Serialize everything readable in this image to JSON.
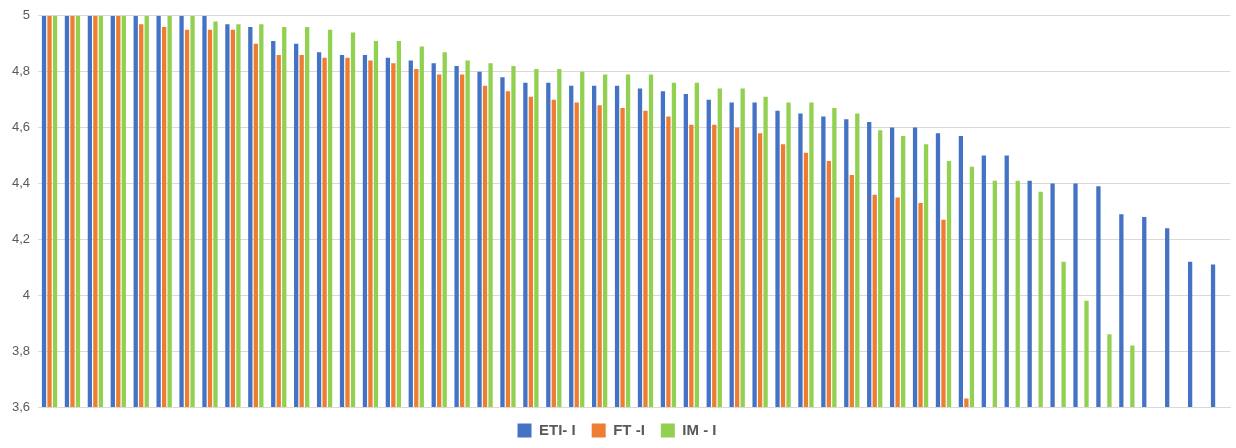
{
  "chart_data": {
    "type": "bar",
    "categories": [
      null,
      null,
      null,
      null,
      null,
      null,
      null,
      null,
      null,
      null,
      null,
      null,
      null,
      null,
      null,
      null,
      null,
      null,
      null,
      null,
      null,
      null,
      null,
      null,
      null,
      null,
      null,
      null,
      null,
      null,
      null,
      null,
      null,
      null,
      null,
      null,
      null,
      null,
      null,
      null,
      null,
      null,
      null,
      null,
      null,
      null,
      null,
      null,
      null,
      null,
      null,
      null
    ],
    "series": [
      {
        "name": "ETI- I",
        "color": "#4472c4",
        "values": [
          5,
          5,
          5,
          5,
          5,
          5,
          5,
          5,
          4.97,
          4.96,
          4.91,
          4.9,
          4.87,
          4.86,
          4.86,
          4.85,
          4.84,
          4.83,
          4.82,
          4.8,
          4.78,
          4.76,
          4.76,
          4.75,
          4.75,
          4.75,
          4.74,
          4.73,
          4.72,
          4.7,
          4.69,
          4.69,
          4.66,
          4.65,
          4.64,
          4.63,
          4.62,
          4.6,
          4.6,
          4.58,
          4.57,
          4.5,
          4.5,
          4.41,
          4.4,
          4.4,
          4.39,
          4.29,
          4.28,
          4.24,
          4.12,
          4.11
        ]
      },
      {
        "name": "FT -I",
        "color": "#ed7d31",
        "values": [
          5,
          5,
          5,
          5,
          4.97,
          4.96,
          4.95,
          4.95,
          4.95,
          4.9,
          4.86,
          4.86,
          4.85,
          4.85,
          4.84,
          4.83,
          4.81,
          4.79,
          4.79,
          4.75,
          4.73,
          4.71,
          4.7,
          4.69,
          4.68,
          4.67,
          4.66,
          4.64,
          4.61,
          4.61,
          4.6,
          4.58,
          4.54,
          4.51,
          4.48,
          4.43,
          4.36,
          4.35,
          4.33,
          4.27,
          3.63,
          null,
          null,
          null,
          null,
          null,
          null,
          null,
          null,
          null,
          null,
          null
        ]
      },
      {
        "name": "IM - I",
        "color": "#92d050",
        "values": [
          5,
          5,
          5,
          5,
          5,
          5,
          5,
          4.98,
          4.97,
          4.97,
          4.96,
          4.96,
          4.95,
          4.94,
          4.91,
          4.91,
          4.89,
          4.87,
          4.84,
          4.83,
          4.82,
          4.81,
          4.81,
          4.8,
          4.79,
          4.79,
          4.79,
          4.76,
          4.76,
          4.74,
          4.74,
          4.71,
          4.69,
          4.69,
          4.67,
          4.65,
          4.59,
          4.57,
          4.54,
          4.48,
          4.46,
          4.41,
          4.41,
          4.37,
          4.12,
          3.98,
          3.86,
          3.82,
          null,
          null,
          null,
          null
        ]
      }
    ],
    "ylim": [
      3.6,
      5
    ],
    "yticks": [
      {
        "value": 3.6,
        "label": "3,6"
      },
      {
        "value": 3.8,
        "label": "3,8"
      },
      4,
      {
        "value": 4.2,
        "label": "4,2"
      },
      {
        "value": 4.4,
        "label": "4,4"
      },
      {
        "value": 4.6,
        "label": "4,6"
      },
      {
        "value": 4.8,
        "label": "4,8"
      },
      5
    ],
    "grid": "y",
    "legend": "bottom"
  }
}
